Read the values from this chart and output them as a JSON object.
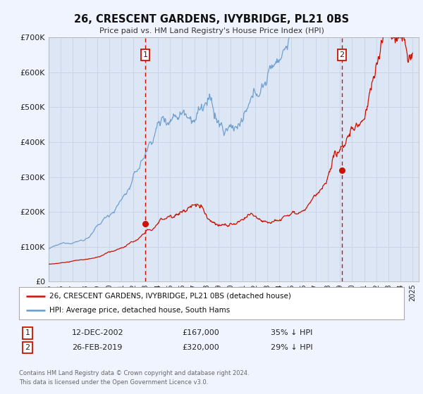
{
  "title": "26, CRESCENT GARDENS, IVYBRIDGE, PL21 0BS",
  "subtitle": "Price paid vs. HM Land Registry's House Price Index (HPI)",
  "bg_color": "#f0f4ff",
  "plot_bg_color": "#dde6f5",
  "grid_color": "#c8d4e8",
  "hpi_color": "#6699cc",
  "price_color": "#cc1100",
  "marker_color": "#cc1100",
  "vline_color": "#cc1100",
  "ylim": [
    0,
    700000
  ],
  "yticks": [
    0,
    100000,
    200000,
    300000,
    400000,
    500000,
    600000,
    700000
  ],
  "ytick_labels": [
    "£0",
    "£100K",
    "£200K",
    "£300K",
    "£400K",
    "£500K",
    "£600K",
    "£700K"
  ],
  "xmin": 1995.0,
  "xmax": 2025.5,
  "event1_x": 2002.96,
  "event1_y": 167000,
  "event1_label": "1",
  "event2_x": 2019.16,
  "event2_y": 320000,
  "event2_label": "2",
  "legend_line1": "26, CRESCENT GARDENS, IVYBRIDGE, PL21 0BS (detached house)",
  "legend_line2": "HPI: Average price, detached house, South Hams",
  "table_row1": [
    "1",
    "12-DEC-2002",
    "£167,000",
    "35% ↓ HPI"
  ],
  "table_row2": [
    "2",
    "26-FEB-2019",
    "£320,000",
    "29% ↓ HPI"
  ],
  "footer1": "Contains HM Land Registry data © Crown copyright and database right 2024.",
  "footer2": "This data is licensed under the Open Government Licence v3.0."
}
